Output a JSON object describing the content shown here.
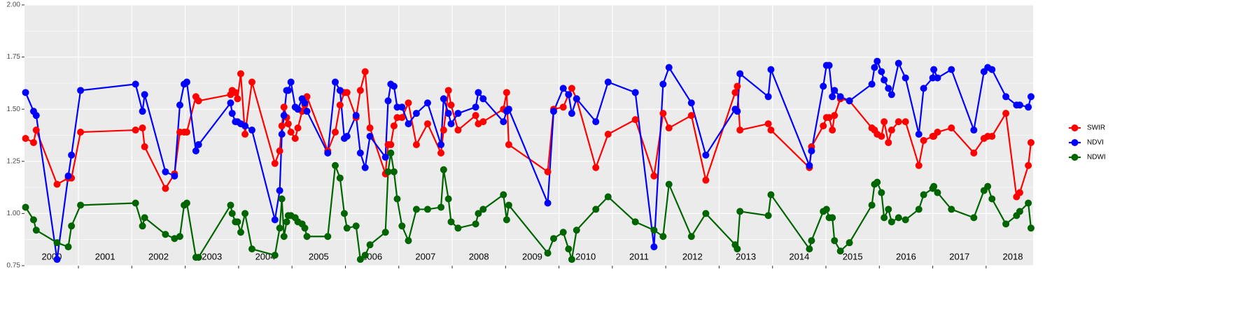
{
  "chart_data": {
    "type": "line",
    "x": [
      2000.01,
      2000.16,
      2000.21,
      2000.6,
      2000.81,
      2000.87,
      2001.04,
      2002.07,
      2002.2,
      2002.24,
      2002.63,
      2002.8,
      2002.9,
      2002.98,
      2003.03,
      2003.2,
      2003.25,
      2003.85,
      2003.88,
      2003.94,
      2003.98,
      2004.04,
      2004.12,
      2004.25,
      2004.68,
      2004.77,
      2004.81,
      2004.85,
      2004.9,
      2004.93,
      2004.98,
      2005.06,
      2005.11,
      2005.19,
      2005.24,
      2005.28,
      2005.67,
      2005.81,
      2005.9,
      2005.98,
      2006.03,
      2006.2,
      2006.28,
      2006.37,
      2006.46,
      2006.75,
      2006.8,
      2006.85,
      2006.91,
      2006.97,
      2007.06,
      2007.18,
      2007.33,
      2007.54,
      2007.79,
      2007.84,
      2007.93,
      2007.98,
      2008.11,
      2008.44,
      2008.49,
      2008.58,
      2008.96,
      2009.02,
      2009.06,
      2009.79,
      2009.9,
      2010.08,
      2010.18,
      2010.24,
      2010.33,
      2010.69,
      2010.92,
      2011.43,
      2011.78,
      2011.95,
      2012.06,
      2012.48,
      2012.75,
      2013.3,
      2013.34,
      2013.39,
      2013.92,
      2013.97,
      2014.69,
      2014.73,
      2014.95,
      2015.01,
      2015.06,
      2015.12,
      2015.16,
      2015.27,
      2015.44,
      2015.86,
      2015.91,
      2015.96,
      2016.04,
      2016.09,
      2016.17,
      2016.23,
      2016.36,
      2016.49,
      2016.74,
      2016.83,
      2017.0,
      2017.02,
      2017.09,
      2017.35,
      2017.77,
      2017.96,
      2018.03,
      2018.11,
      2018.37,
      2018.57,
      2018.63,
      2018.79,
      2018.84
    ],
    "series": [
      {
        "name": "SWIR",
        "color": "#ff0000",
        "values": [
          1.36,
          1.34,
          1.4,
          1.14,
          1.17,
          1.17,
          1.39,
          1.4,
          1.41,
          1.32,
          1.12,
          1.19,
          1.39,
          1.39,
          1.39,
          1.56,
          1.54,
          1.57,
          1.59,
          1.58,
          1.55,
          1.67,
          1.38,
          1.63,
          1.24,
          1.3,
          1.42,
          1.51,
          1.46,
          1.43,
          1.39,
          1.36,
          1.41,
          1.49,
          1.52,
          1.56,
          1.3,
          1.39,
          1.52,
          1.58,
          1.58,
          1.46,
          1.59,
          1.68,
          1.41,
          1.19,
          1.33,
          1.33,
          1.42,
          1.46,
          1.46,
          1.53,
          1.33,
          1.43,
          1.29,
          1.4,
          1.59,
          1.52,
          1.4,
          1.47,
          1.43,
          1.44,
          1.5,
          1.58,
          1.33,
          1.2,
          1.5,
          1.51,
          1.57,
          1.6,
          1.55,
          1.22,
          1.38,
          1.45,
          1.18,
          1.48,
          1.41,
          1.47,
          1.16,
          1.58,
          1.61,
          1.4,
          1.43,
          1.4,
          1.22,
          1.32,
          1.42,
          1.46,
          1.46,
          1.4,
          1.47,
          1.55,
          1.54,
          1.41,
          1.4,
          1.38,
          1.37,
          1.44,
          1.34,
          1.4,
          1.44,
          1.44,
          1.23,
          1.35,
          1.37,
          1.37,
          1.39,
          1.41,
          1.29,
          1.36,
          1.37,
          1.37,
          1.48,
          1.08,
          1.1,
          1.23,
          1.34
        ]
      },
      {
        "name": "NDVI",
        "color": "#0000ff",
        "values": [
          1.58,
          1.49,
          1.47,
          0.78,
          1.18,
          1.28,
          1.59,
          1.62,
          1.49,
          1.57,
          1.2,
          1.18,
          1.52,
          1.62,
          1.63,
          1.3,
          1.33,
          1.53,
          1.48,
          1.44,
          1.44,
          1.43,
          1.42,
          1.4,
          0.97,
          1.11,
          1.38,
          1.47,
          1.59,
          1.59,
          1.63,
          1.51,
          1.5,
          1.55,
          1.53,
          1.49,
          1.29,
          1.63,
          1.59,
          1.36,
          1.37,
          1.47,
          1.29,
          1.22,
          1.37,
          1.27,
          1.54,
          1.62,
          1.61,
          1.51,
          1.51,
          1.43,
          1.48,
          1.53,
          1.33,
          1.55,
          1.48,
          1.43,
          1.48,
          1.51,
          1.58,
          1.55,
          1.44,
          1.49,
          1.5,
          1.05,
          1.49,
          1.6,
          1.57,
          1.48,
          1.55,
          1.44,
          1.63,
          1.58,
          0.84,
          1.62,
          1.7,
          1.53,
          1.28,
          1.5,
          1.49,
          1.67,
          1.56,
          1.69,
          1.23,
          1.3,
          1.61,
          1.71,
          1.71,
          1.56,
          1.59,
          1.56,
          1.54,
          1.62,
          1.7,
          1.73,
          1.68,
          1.64,
          1.6,
          1.57,
          1.72,
          1.65,
          1.38,
          1.6,
          1.65,
          1.69,
          1.65,
          1.69,
          1.4,
          1.68,
          1.7,
          1.69,
          1.56,
          1.52,
          1.52,
          1.51,
          1.56
        ]
      },
      {
        "name": "NDWI",
        "color": "#006400",
        "values": [
          1.03,
          0.97,
          0.92,
          0.86,
          0.84,
          0.94,
          1.04,
          1.05,
          0.94,
          0.98,
          0.9,
          0.88,
          0.89,
          1.04,
          1.05,
          0.79,
          0.79,
          1.04,
          1.0,
          0.96,
          0.96,
          0.91,
          1.0,
          0.83,
          0.8,
          0.93,
          1.07,
          0.89,
          0.96,
          0.99,
          0.99,
          0.98,
          0.96,
          0.95,
          0.93,
          0.89,
          0.89,
          1.23,
          1.17,
          1.0,
          0.93,
          0.94,
          0.78,
          0.8,
          0.85,
          0.91,
          1.2,
          1.29,
          1.2,
          1.07,
          0.94,
          0.87,
          1.02,
          1.02,
          1.03,
          1.21,
          1.07,
          0.96,
          0.93,
          0.95,
          1.0,
          1.02,
          1.09,
          0.97,
          1.04,
          0.81,
          0.88,
          0.91,
          0.83,
          0.78,
          0.92,
          1.02,
          1.08,
          0.96,
          0.92,
          0.89,
          1.14,
          0.89,
          1.0,
          0.85,
          0.83,
          1.01,
          0.99,
          1.09,
          0.83,
          0.87,
          1.01,
          1.02,
          0.98,
          0.98,
          0.87,
          0.82,
          0.86,
          1.04,
          1.14,
          1.15,
          1.1,
          0.98,
          1.02,
          0.96,
          0.98,
          0.97,
          1.02,
          1.09,
          1.12,
          1.13,
          1.1,
          1.02,
          0.98,
          1.11,
          1.13,
          1.07,
          0.95,
          0.99,
          1.01,
          1.05,
          0.93
        ]
      }
    ],
    "xlim": [
      1999.99,
      2018.88
    ],
    "xticks": [
      2001,
      2002,
      2003,
      2004,
      2005,
      2006,
      2007,
      2008,
      2009,
      2010,
      2011,
      2012,
      2013,
      2014,
      2015,
      2016,
      2017,
      2018
    ],
    "ylim": [
      0.75,
      2.0
    ],
    "yticks": [
      0.75,
      {
        "value": 1.0,
        "label": "1.00"
      },
      1.25,
      {
        "value": 1.5,
        "label": "1.50"
      },
      1.75,
      {
        "value": 2.0,
        "label": "2.00"
      }
    ],
    "annotations": [
      {
        "text": "2000",
        "x": 2000.5,
        "y": 0.79
      },
      {
        "text": "2001",
        "x": 2001.5,
        "y": 0.79
      },
      {
        "text": "2002",
        "x": 2002.5,
        "y": 0.79
      },
      {
        "text": "2003",
        "x": 2003.5,
        "y": 0.79
      },
      {
        "text": "2004",
        "x": 2004.5,
        "y": 0.79
      },
      {
        "text": "2005",
        "x": 2005.5,
        "y": 0.79
      },
      {
        "text": "2006",
        "x": 2006.5,
        "y": 0.79
      },
      {
        "text": "2007",
        "x": 2007.5,
        "y": 0.79
      },
      {
        "text": "2008",
        "x": 2008.5,
        "y": 0.79
      },
      {
        "text": "2009",
        "x": 2009.5,
        "y": 0.79
      },
      {
        "text": "2010",
        "x": 2010.5,
        "y": 0.79
      },
      {
        "text": "2011",
        "x": 2011.5,
        "y": 0.79
      },
      {
        "text": "2012",
        "x": 2012.5,
        "y": 0.79
      },
      {
        "text": "2013",
        "x": 2013.5,
        "y": 0.79
      },
      {
        "text": "2014",
        "x": 2014.5,
        "y": 0.79
      },
      {
        "text": "2015",
        "x": 2015.5,
        "y": 0.79
      },
      {
        "text": "2016",
        "x": 2016.5,
        "y": 0.79
      },
      {
        "text": "2017",
        "x": 2017.5,
        "y": 0.79
      },
      {
        "text": "2018",
        "x": 2018.5,
        "y": 0.79
      }
    ],
    "grid": true,
    "legend": "right"
  }
}
